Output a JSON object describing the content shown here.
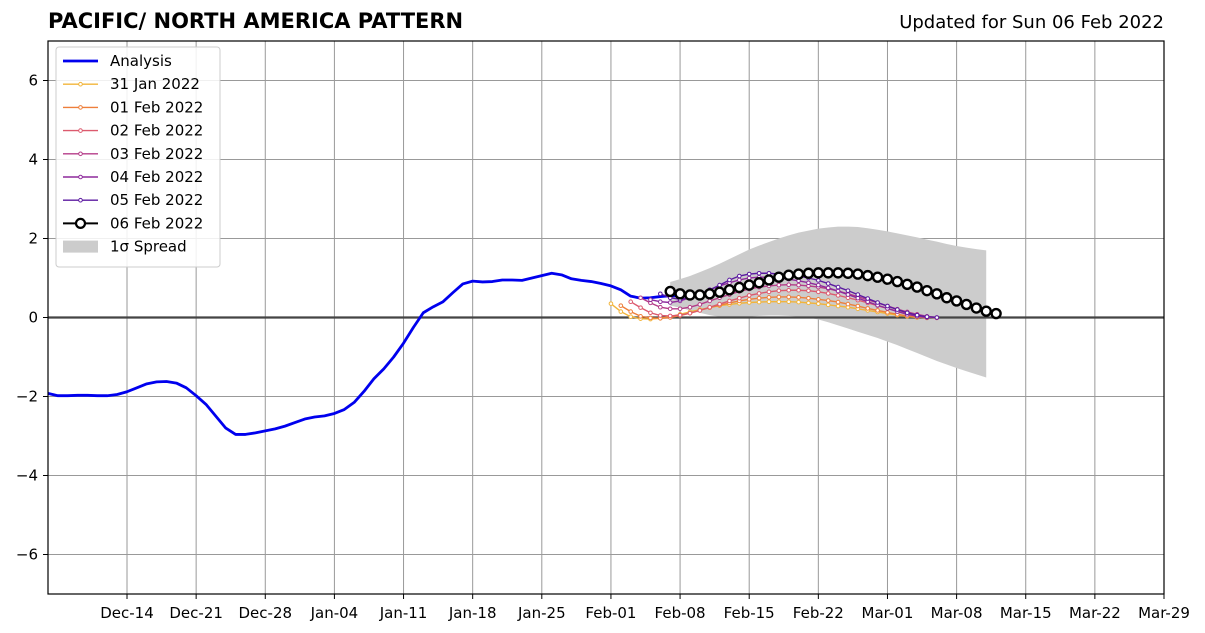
{
  "chart_data": {
    "type": "line",
    "title": "PACIFIC/ NORTH AMERICA PATTERN",
    "subtitle": "Updated for Sun 06 Feb 2022",
    "xlabel": "",
    "ylabel": "",
    "x_range": [
      "2021-12-06",
      "2022-03-29"
    ],
    "ylim": [
      -7,
      7
    ],
    "yticks": [
      -6,
      -4,
      -2,
      0,
      2,
      4,
      6
    ],
    "ytick_labels": [
      "−6",
      "−4",
      "−2",
      "0",
      "2",
      "4",
      "6"
    ],
    "xticks": [
      {
        "date": "2021-12-14",
        "label": "Dec-14"
      },
      {
        "date": "2021-12-21",
        "label": "Dec-21"
      },
      {
        "date": "2021-12-28",
        "label": "Dec-28"
      },
      {
        "date": "2022-01-04",
        "label": "Jan-04"
      },
      {
        "date": "2022-01-11",
        "label": "Jan-11"
      },
      {
        "date": "2022-01-18",
        "label": "Jan-18"
      },
      {
        "date": "2022-01-25",
        "label": "Jan-25"
      },
      {
        "date": "2022-02-01",
        "label": "Feb-01"
      },
      {
        "date": "2022-02-08",
        "label": "Feb-08"
      },
      {
        "date": "2022-02-15",
        "label": "Feb-15"
      },
      {
        "date": "2022-02-22",
        "label": "Feb-22"
      },
      {
        "date": "2022-03-01",
        "label": "Mar-01"
      },
      {
        "date": "2022-03-08",
        "label": "Mar-08"
      },
      {
        "date": "2022-03-15",
        "label": "Mar-15"
      },
      {
        "date": "2022-03-22",
        "label": "Mar-22"
      },
      {
        "date": "2022-03-29",
        "label": "Mar-29"
      }
    ],
    "grid": true,
    "legend_position": "top-left",
    "analysis": {
      "name": "Analysis",
      "color": "#0000ee",
      "start": "2021-12-06",
      "values": [
        -1.92,
        -1.98,
        -1.98,
        -1.97,
        -1.97,
        -1.98,
        -1.98,
        -1.95,
        -1.88,
        -1.78,
        -1.68,
        -1.63,
        -1.62,
        -1.66,
        -1.78,
        -1.98,
        -2.2,
        -2.5,
        -2.8,
        -2.96,
        -2.96,
        -2.92,
        -2.87,
        -2.82,
        -2.75,
        -2.66,
        -2.57,
        -2.52,
        -2.49,
        -2.43,
        -2.33,
        -2.15,
        -1.87,
        -1.55,
        -1.3,
        -1.0,
        -0.65,
        -0.25,
        0.12,
        0.27,
        0.4,
        0.63,
        0.85,
        0.92,
        0.9,
        0.91,
        0.95,
        0.95,
        0.94,
        1.0,
        1.06,
        1.12,
        1.08,
        0.98,
        0.94,
        0.91,
        0.86,
        0.8,
        0.7,
        0.54,
        0.49,
        0.5,
        0.53,
        0.55,
        0.55,
        0.54
      ]
    },
    "spread": {
      "name": "1σ Spread",
      "color": "#cccccc",
      "start": "2022-02-07",
      "upper": [
        0.9,
        0.97,
        1.05,
        1.15,
        1.25,
        1.36,
        1.48,
        1.6,
        1.72,
        1.82,
        1.91,
        2.0,
        2.08,
        2.15,
        2.2,
        2.25,
        2.28,
        2.3,
        2.3,
        2.29,
        2.26,
        2.22,
        2.18,
        2.13,
        2.08,
        2.03,
        1.97,
        1.92,
        1.86,
        1.81,
        1.77,
        1.73,
        1.7
      ],
      "lower": [
        0.3,
        0.25,
        0.18,
        0.12,
        0.06,
        0.02,
        0.0,
        0.0,
        0.02,
        0.04,
        0.05,
        0.05,
        0.04,
        0.02,
        0.0,
        -0.05,
        -0.12,
        -0.2,
        -0.28,
        -0.36,
        -0.44,
        -0.52,
        -0.61,
        -0.7,
        -0.8,
        -0.9,
        -1.0,
        -1.1,
        -1.19,
        -1.28,
        -1.36,
        -1.44,
        -1.52
      ]
    },
    "series": [
      {
        "name": "31 Jan 2022",
        "color": "#f2b43a",
        "start": "2022-02-01",
        "values": [
          0.35,
          0.15,
          0.02,
          -0.03,
          -0.04,
          -0.02,
          0.02,
          0.08,
          0.14,
          0.2,
          0.25,
          0.3,
          0.33,
          0.36,
          0.38,
          0.39,
          0.4,
          0.4,
          0.4,
          0.39,
          0.37,
          0.35,
          0.32,
          0.29,
          0.26,
          0.22,
          0.18,
          0.14,
          0.1,
          0.06,
          0.03,
          0.0
        ]
      },
      {
        "name": "01 Feb 2022",
        "color": "#ee7f3b",
        "start": "2022-02-02",
        "values": [
          0.3,
          0.15,
          0.03,
          -0.01,
          -0.02,
          0.0,
          0.05,
          0.11,
          0.18,
          0.25,
          0.31,
          0.37,
          0.42,
          0.46,
          0.49,
          0.51,
          0.52,
          0.52,
          0.51,
          0.49,
          0.46,
          0.43,
          0.39,
          0.34,
          0.29,
          0.23,
          0.18,
          0.13,
          0.08,
          0.04,
          0.01,
          -0.01
        ]
      },
      {
        "name": "02 Feb 2022",
        "color": "#dc5a6e",
        "start": "2022-02-03",
        "values": [
          0.4,
          0.25,
          0.12,
          0.05,
          0.04,
          0.06,
          0.11,
          0.18,
          0.26,
          0.34,
          0.42,
          0.49,
          0.56,
          0.61,
          0.65,
          0.68,
          0.69,
          0.69,
          0.68,
          0.65,
          0.61,
          0.56,
          0.5,
          0.44,
          0.37,
          0.3,
          0.23,
          0.16,
          0.1,
          0.05,
          0.01,
          -0.01
        ]
      },
      {
        "name": "03 Feb 2022",
        "color": "#b43c88",
        "start": "2022-02-04",
        "values": [
          0.5,
          0.37,
          0.26,
          0.22,
          0.22,
          0.26,
          0.33,
          0.42,
          0.5,
          0.58,
          0.66,
          0.72,
          0.77,
          0.8,
          0.82,
          0.83,
          0.82,
          0.8,
          0.77,
          0.73,
          0.67,
          0.6,
          0.53,
          0.45,
          0.37,
          0.29,
          0.21,
          0.14,
          0.08,
          0.03,
          0.0
        ]
      },
      {
        "name": "04 Feb 2022",
        "color": "#8e2a9c",
        "start": "2022-02-05",
        "values": [
          0.45,
          0.4,
          0.38,
          0.42,
          0.5,
          0.6,
          0.7,
          0.8,
          0.88,
          0.95,
          1.0,
          1.02,
          1.02,
          1.0,
          0.97,
          0.93,
          0.88,
          0.82,
          0.75,
          0.67,
          0.58,
          0.49,
          0.4,
          0.31,
          0.23,
          0.15,
          0.08,
          0.03,
          0.0
        ]
      },
      {
        "name": "05 Feb 2022",
        "color": "#5b1aa0",
        "start": "2022-02-06",
        "values": [
          0.6,
          0.5,
          0.46,
          0.5,
          0.58,
          0.7,
          0.82,
          0.95,
          1.05,
          1.1,
          1.12,
          1.12,
          1.1,
          1.08,
          1.05,
          1.0,
          0.94,
          0.86,
          0.77,
          0.68,
          0.58,
          0.48,
          0.38,
          0.29,
          0.2,
          0.12,
          0.06,
          0.02,
          0.0
        ]
      },
      {
        "name": "06 Feb 2022",
        "color": "#000000",
        "start": "2022-02-07",
        "values": [
          0.66,
          0.6,
          0.57,
          0.57,
          0.6,
          0.64,
          0.7,
          0.76,
          0.82,
          0.88,
          0.95,
          1.02,
          1.07,
          1.1,
          1.12,
          1.13,
          1.13,
          1.13,
          1.12,
          1.1,
          1.06,
          1.02,
          0.97,
          0.91,
          0.84,
          0.77,
          0.68,
          0.6,
          0.5,
          0.42,
          0.33,
          0.24,
          0.16,
          0.1
        ]
      }
    ]
  }
}
